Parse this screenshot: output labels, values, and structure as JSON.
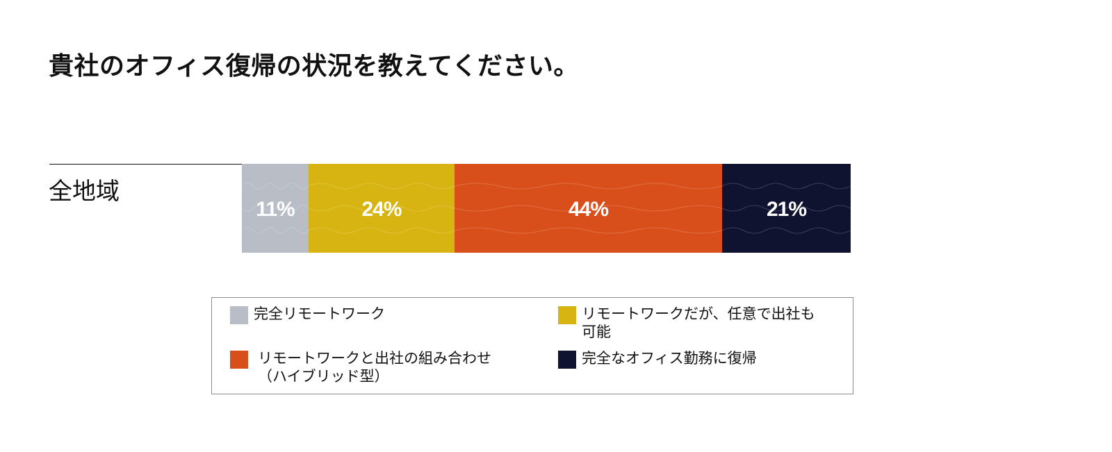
{
  "title": "貴社のオフィス復帰の状況を教えてください。",
  "chart_data": {
    "type": "bar",
    "orientation": "horizontal",
    "stacked": true,
    "categories": [
      "全地域"
    ],
    "series": [
      {
        "name": "完全リモートワーク",
        "values": [
          11
        ],
        "label": "11%",
        "color": "#b9bdc6"
      },
      {
        "name": "リモートワークだが、任意で出社も可能",
        "values": [
          24
        ],
        "label": "24%",
        "color": "#d8b412"
      },
      {
        "name": "リモートワークと出社の組み合わせ（ハイブリッド型）",
        "values": [
          44
        ],
        "label": "44%",
        "color": "#d84f1c"
      },
      {
        "name": "完全なオフィス勤務に復帰",
        "values": [
          21
        ],
        "label": "21%",
        "color": "#0f1330"
      }
    ],
    "xlim": [
      0,
      100
    ],
    "legend_position": "bottom",
    "grid": false
  },
  "legend": {
    "items": [
      {
        "lines": [
          "完全リモートワーク"
        ],
        "color": "#b9bdc6"
      },
      {
        "lines": [
          "リモートワークだが、任意で出社も",
          "可能"
        ],
        "color": "#d8b412"
      },
      {
        "lines": [
          "リモートワークと出社の組み合わせ",
          "（ハイブリッド型）"
        ],
        "color": "#d84f1c"
      },
      {
        "lines": [
          "完全なオフィス勤務に復帰"
        ],
        "color": "#0f1330"
      }
    ]
  }
}
